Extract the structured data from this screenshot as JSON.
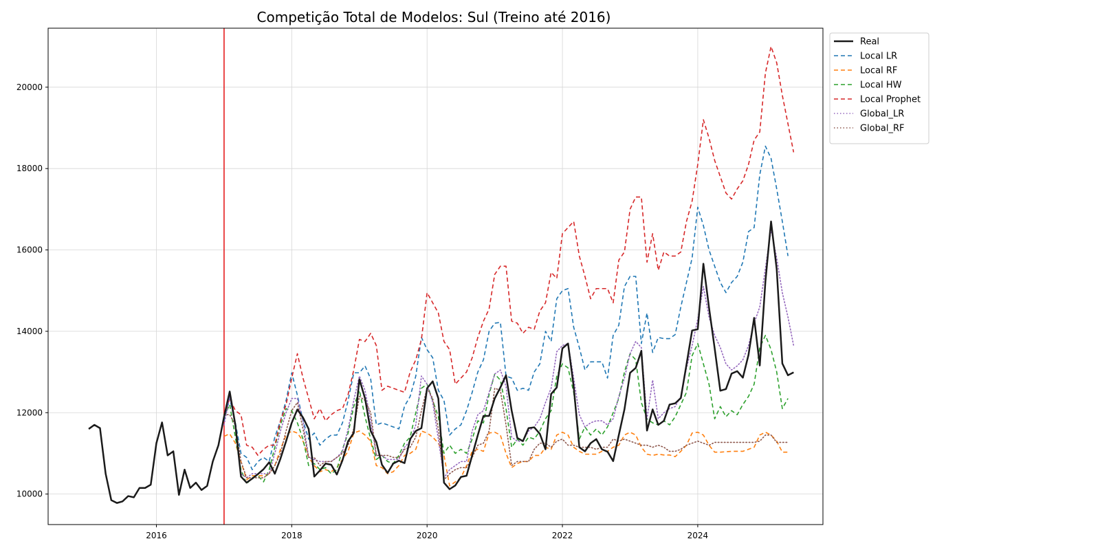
{
  "chart_data": {
    "type": "line",
    "title": "Competição Total de Modelos: Sul (Treino até 2016)",
    "xlabel": "",
    "ylabel": "",
    "xlim": [
      2014.4,
      2025.85
    ],
    "ylim": [
      9250,
      21450
    ],
    "x_ticks": [
      2016,
      2018,
      2020,
      2022,
      2024
    ],
    "x_tick_labels": [
      "2016",
      "2018",
      "2020",
      "2022",
      "2024"
    ],
    "y_ticks": [
      10000,
      12000,
      14000,
      16000,
      18000,
      20000
    ],
    "y_tick_labels": [
      "10000",
      "12000",
      "14000",
      "16000",
      "18000",
      "20000"
    ],
    "grid": true,
    "legend_position": "outside-upper-right",
    "train_cutoff": {
      "x": 2017.0,
      "color": "#e41a1c"
    },
    "colors": {
      "real": "#1a1a1a",
      "local_lr": "#1f77b4",
      "local_rf": "#ff7f0e",
      "local_hw": "#2ca02c",
      "local_prophet": "#d62728",
      "global_lr": "#9467bd",
      "global_rf": "#8c564b"
    },
    "series": [
      {
        "name": "Real",
        "key": "real",
        "dash": "solid",
        "width": 2.5,
        "start": 2015.0,
        "values": [
          11600,
          11700,
          11620,
          10500,
          9850,
          9780,
          9820,
          9950,
          9920,
          10150,
          10150,
          10230,
          11250,
          11760,
          10950,
          11050,
          9980,
          10600,
          10150,
          10280,
          10100,
          10200,
          10800,
          11200,
          11900,
          12520,
          11700,
          10430,
          10280,
          10380,
          10490,
          10610,
          10780,
          10500,
          10870,
          11300,
          11750,
          12080,
          11880,
          11600,
          10430,
          10580,
          10750,
          10720,
          10480,
          10830,
          11300,
          11500,
          12820,
          12350,
          11550,
          11280,
          10720,
          10520,
          10750,
          10820,
          10760,
          11350,
          11550,
          11620,
          12600,
          12770,
          12350,
          10280,
          10120,
          10210,
          10420,
          10450,
          10950,
          11450,
          11920,
          11920,
          12350,
          12620,
          12920,
          12050,
          11380,
          11300,
          11620,
          11640,
          11480,
          11100,
          12460,
          12620,
          13580,
          13700,
          12640,
          11150,
          11050,
          11250,
          11350,
          11100,
          11040,
          10810,
          11450,
          12080,
          12980,
          13100,
          13520,
          11560,
          12080,
          11700,
          11800,
          12200,
          12230,
          12360,
          13180,
          14020,
          14050,
          15660,
          14580,
          13580,
          12540,
          12580,
          12960,
          13020,
          12860,
          13420,
          14330,
          13160,
          15230,
          16700,
          15530,
          13210,
          12920,
          12990
        ]
      },
      {
        "name": "Local LR",
        "key": "local_lr",
        "dash": "6,4",
        "width": 1.6,
        "start": 2017.0,
        "values": [
          11800,
          12350,
          11750,
          11000,
          10900,
          10600,
          10800,
          10900,
          10800,
          11400,
          11800,
          12300,
          12980,
          12430,
          11800,
          11350,
          11500,
          11200,
          11350,
          11450,
          11450,
          11750,
          12300,
          12980,
          12980,
          13150,
          12830,
          11700,
          11750,
          11700,
          11650,
          11600,
          12160,
          12400,
          12900,
          13850,
          13550,
          13350,
          12550,
          12300,
          11450,
          11600,
          11700,
          12050,
          12500,
          13000,
          13300,
          14000,
          14200,
          14220,
          12900,
          12850,
          12550,
          12600,
          12550,
          13000,
          13200,
          14000,
          13750,
          14800,
          15000,
          15050,
          14100,
          13600,
          13050,
          13250,
          13250,
          13250,
          12850,
          13900,
          14150,
          15100,
          15350,
          15350,
          13700,
          14450,
          13480,
          13850,
          13820,
          13820,
          13920,
          14600,
          15200,
          15800,
          17050,
          16600,
          16000,
          15600,
          15200,
          14950,
          15200,
          15350,
          15700,
          16450,
          16550,
          17850,
          18550,
          18250,
          17500,
          16700,
          15850
        ]
      },
      {
        "name": "Local RF",
        "key": "local_rf",
        "dash": "6,4",
        "width": 1.6,
        "start": 2017.0,
        "values": [
          11420,
          11480,
          11250,
          10800,
          10350,
          10450,
          10450,
          10450,
          10500,
          10700,
          11100,
          11450,
          11550,
          11500,
          11300,
          10900,
          10700,
          10550,
          10600,
          10550,
          10650,
          10850,
          11050,
          11500,
          11550,
          11450,
          11300,
          10700,
          10650,
          10500,
          10550,
          10700,
          10950,
          11000,
          11100,
          11550,
          11500,
          11400,
          11250,
          10950,
          10200,
          10300,
          10400,
          10700,
          11050,
          11100,
          11050,
          11500,
          11520,
          11450,
          11000,
          10650,
          10750,
          10800,
          10800,
          10950,
          10950,
          11150,
          11100,
          11450,
          11520,
          11450,
          11150,
          11050,
          10980,
          10980,
          10980,
          11050,
          11050,
          11150,
          11200,
          11450,
          11520,
          11450,
          11150,
          10980,
          10950,
          10980,
          10960,
          10960,
          10920,
          11050,
          11200,
          11500,
          11520,
          11450,
          11200,
          11030,
          11030,
          11040,
          11050,
          11050,
          11050,
          11100,
          11150,
          11450,
          11520,
          11450,
          11300,
          11030,
          11030
        ]
      },
      {
        "name": "Local HW",
        "key": "local_hw",
        "dash": "6,4",
        "width": 1.6,
        "start": 2017.0,
        "values": [
          11900,
          12200,
          11400,
          10600,
          10250,
          10400,
          10450,
          10300,
          10600,
          11150,
          11700,
          12100,
          12050,
          11750,
          11350,
          10700,
          10750,
          10600,
          10650,
          10500,
          10600,
          11100,
          11500,
          12150,
          12550,
          11900,
          11350,
          10850,
          10950,
          10800,
          10750,
          10950,
          11250,
          11400,
          12000,
          12600,
          12700,
          12300,
          11900,
          11000,
          11200,
          11000,
          11100,
          11000,
          11350,
          11800,
          11750,
          12450,
          12950,
          12800,
          12100,
          11150,
          11350,
          11200,
          11400,
          11350,
          11550,
          11850,
          12050,
          12900,
          13200,
          13100,
          12500,
          11350,
          11650,
          11450,
          11600,
          11450,
          11650,
          12000,
          12350,
          13000,
          13450,
          13300,
          12250,
          11850,
          11750,
          11700,
          11800,
          11700,
          11900,
          12200,
          12500,
          13400,
          13700,
          13200,
          12700,
          11850,
          12150,
          11900,
          12050,
          11950,
          12200,
          12400,
          12700,
          13600,
          13900,
          13550,
          13000,
          12100,
          12350
        ]
      },
      {
        "name": "Local Prophet",
        "key": "local_prophet",
        "dash": "6,4",
        "width": 1.6,
        "start": 2017.0,
        "values": [
          11900,
          12350,
          12050,
          11950,
          11200,
          11150,
          10950,
          11100,
          11200,
          11200,
          11800,
          12200,
          12850,
          13450,
          12850,
          12350,
          11850,
          12100,
          11800,
          11950,
          12050,
          12100,
          12450,
          13050,
          13800,
          13750,
          13950,
          13650,
          12550,
          12650,
          12600,
          12550,
          12500,
          13000,
          13300,
          13800,
          14950,
          14700,
          14450,
          13750,
          13550,
          12700,
          12850,
          13000,
          13350,
          13850,
          14250,
          14550,
          15400,
          15600,
          15600,
          14250,
          14200,
          13950,
          14100,
          14050,
          14500,
          14700,
          15450,
          15300,
          16400,
          16550,
          16700,
          15850,
          15350,
          14800,
          15050,
          15050,
          15050,
          14700,
          15750,
          15950,
          17000,
          17300,
          17300,
          15700,
          16400,
          15500,
          15950,
          15850,
          15850,
          15950,
          16700,
          17200,
          18100,
          19200,
          18750,
          18200,
          17800,
          17400,
          17250,
          17500,
          17700,
          18100,
          18700,
          18900,
          20350,
          21000,
          20600,
          19800,
          19100,
          18400
        ]
      },
      {
        "name": "Global_LR",
        "key": "global_lr",
        "dash": "1.5,3",
        "width": 1.6,
        "start": 2017.0,
        "values": [
          11700,
          12400,
          11700,
          10500,
          10400,
          10500,
          10500,
          10500,
          10500,
          11000,
          11550,
          12000,
          12350,
          12350,
          11800,
          10900,
          10850,
          10800,
          10800,
          10800,
          10900,
          11050,
          11600,
          12300,
          12900,
          12550,
          11800,
          10950,
          10950,
          10850,
          10850,
          10850,
          11150,
          11300,
          11700,
          12900,
          12700,
          12250,
          11350,
          10400,
          10600,
          10700,
          10800,
          10800,
          11550,
          11950,
          12050,
          12500,
          12950,
          13050,
          12650,
          11400,
          11300,
          11300,
          11550,
          11650,
          11850,
          12250,
          12600,
          13500,
          13650,
          13700,
          12850,
          11950,
          11650,
          11750,
          11800,
          11800,
          11700,
          11850,
          12400,
          12850,
          13450,
          13750,
          13600,
          11850,
          12800,
          11850,
          12000,
          12100,
          12150,
          12400,
          13100,
          13650,
          14300,
          15100,
          14350,
          13900,
          13600,
          13200,
          13050,
          13150,
          13300,
          13650,
          14200,
          14600,
          15550,
          16500,
          15800,
          14950,
          14350,
          13650
        ]
      },
      {
        "name": "Global_RF",
        "key": "global_rf",
        "dash": "1.5,3",
        "width": 1.6,
        "start": 2017.0,
        "values": [
          11950,
          11950,
          11700,
          10800,
          10400,
          10400,
          10400,
          10400,
          10500,
          10700,
          11000,
          11550,
          12050,
          12250,
          11600,
          10900,
          10900,
          10700,
          10800,
          10800,
          10900,
          11000,
          11200,
          11600,
          12400,
          12300,
          12000,
          10950,
          10950,
          10950,
          10900,
          10900,
          11100,
          11150,
          11400,
          12050,
          12600,
          12350,
          11600,
          10350,
          10500,
          10600,
          10650,
          10650,
          10900,
          11200,
          11250,
          11550,
          12600,
          12550,
          11700,
          10700,
          10800,
          10800,
          10800,
          11100,
          11250,
          11250,
          11150,
          11300,
          11350,
          11200,
          11200,
          11150,
          11150,
          11150,
          11100,
          11150,
          11150,
          11350,
          11300,
          11350,
          11300,
          11250,
          11200,
          11200,
          11150,
          11200,
          11150,
          11050,
          11050,
          11100,
          11200,
          11250,
          11300,
          11250,
          11200,
          11270,
          11270,
          11270,
          11270,
          11270,
          11270,
          11270,
          11270,
          11300,
          11450,
          11450,
          11270,
          11270,
          11270
        ]
      }
    ]
  }
}
